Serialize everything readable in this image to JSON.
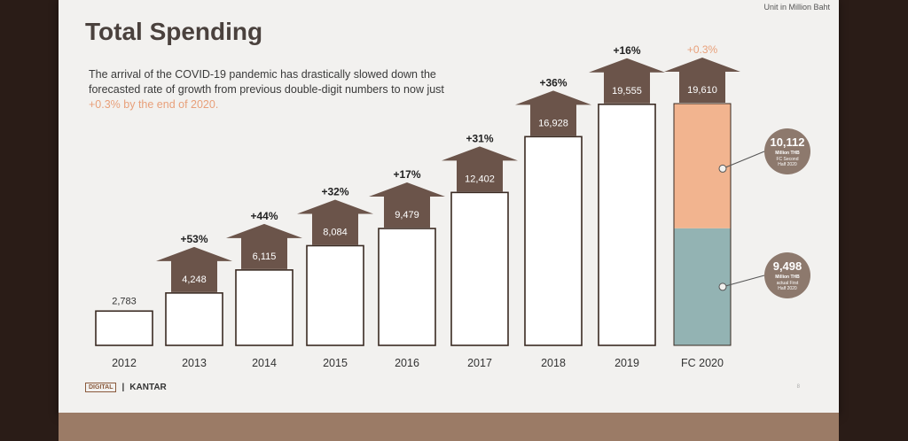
{
  "slide": {
    "title": "Total Spending",
    "description_main": "The arrival of the COVID-19 pandemic has drastically slowed down the forecasted rate of growth from previous double-digit numbers to now just ",
    "description_highlight": "+0.3% by the end of 2020.",
    "unit_note": "Unit in Million Baht",
    "footer_brand": "KANTAR",
    "footer_mini_logo": "DIGITAL",
    "page_number": "8",
    "colors": {
      "arrow": "#6b544a",
      "highlight": "#e8a07a",
      "second_half": "#f2b48f",
      "first_half": "#93b3b3",
      "bubble": "#8d796d"
    }
  },
  "chart_data": {
    "type": "bar",
    "categories": [
      "2012",
      "2013",
      "2014",
      "2015",
      "2016",
      "2017",
      "2018",
      "2019",
      "FC 2020"
    ],
    "values": [
      2783,
      4248,
      6115,
      8084,
      9479,
      12402,
      16928,
      19555,
      19610
    ],
    "value_labels": [
      "2,783",
      "4,248",
      "6,115",
      "8,084",
      "9,479",
      "12,402",
      "16,928",
      "19,555",
      "19,610"
    ],
    "growth_labels": [
      "",
      "+53%",
      "+44%",
      "+32%",
      "+17%",
      "+31%",
      "+36%",
      "+16%",
      "+0.3%"
    ],
    "forecast_breakdown": [
      {
        "value": 10112,
        "label": "10,112",
        "unit": "Million THB",
        "desc1": "FC Second",
        "desc2": "Half 2020"
      },
      {
        "value": 9498,
        "label": "9,498",
        "unit": "Million THB",
        "desc1": "actual First",
        "desc2": "Half 2020"
      }
    ]
  }
}
